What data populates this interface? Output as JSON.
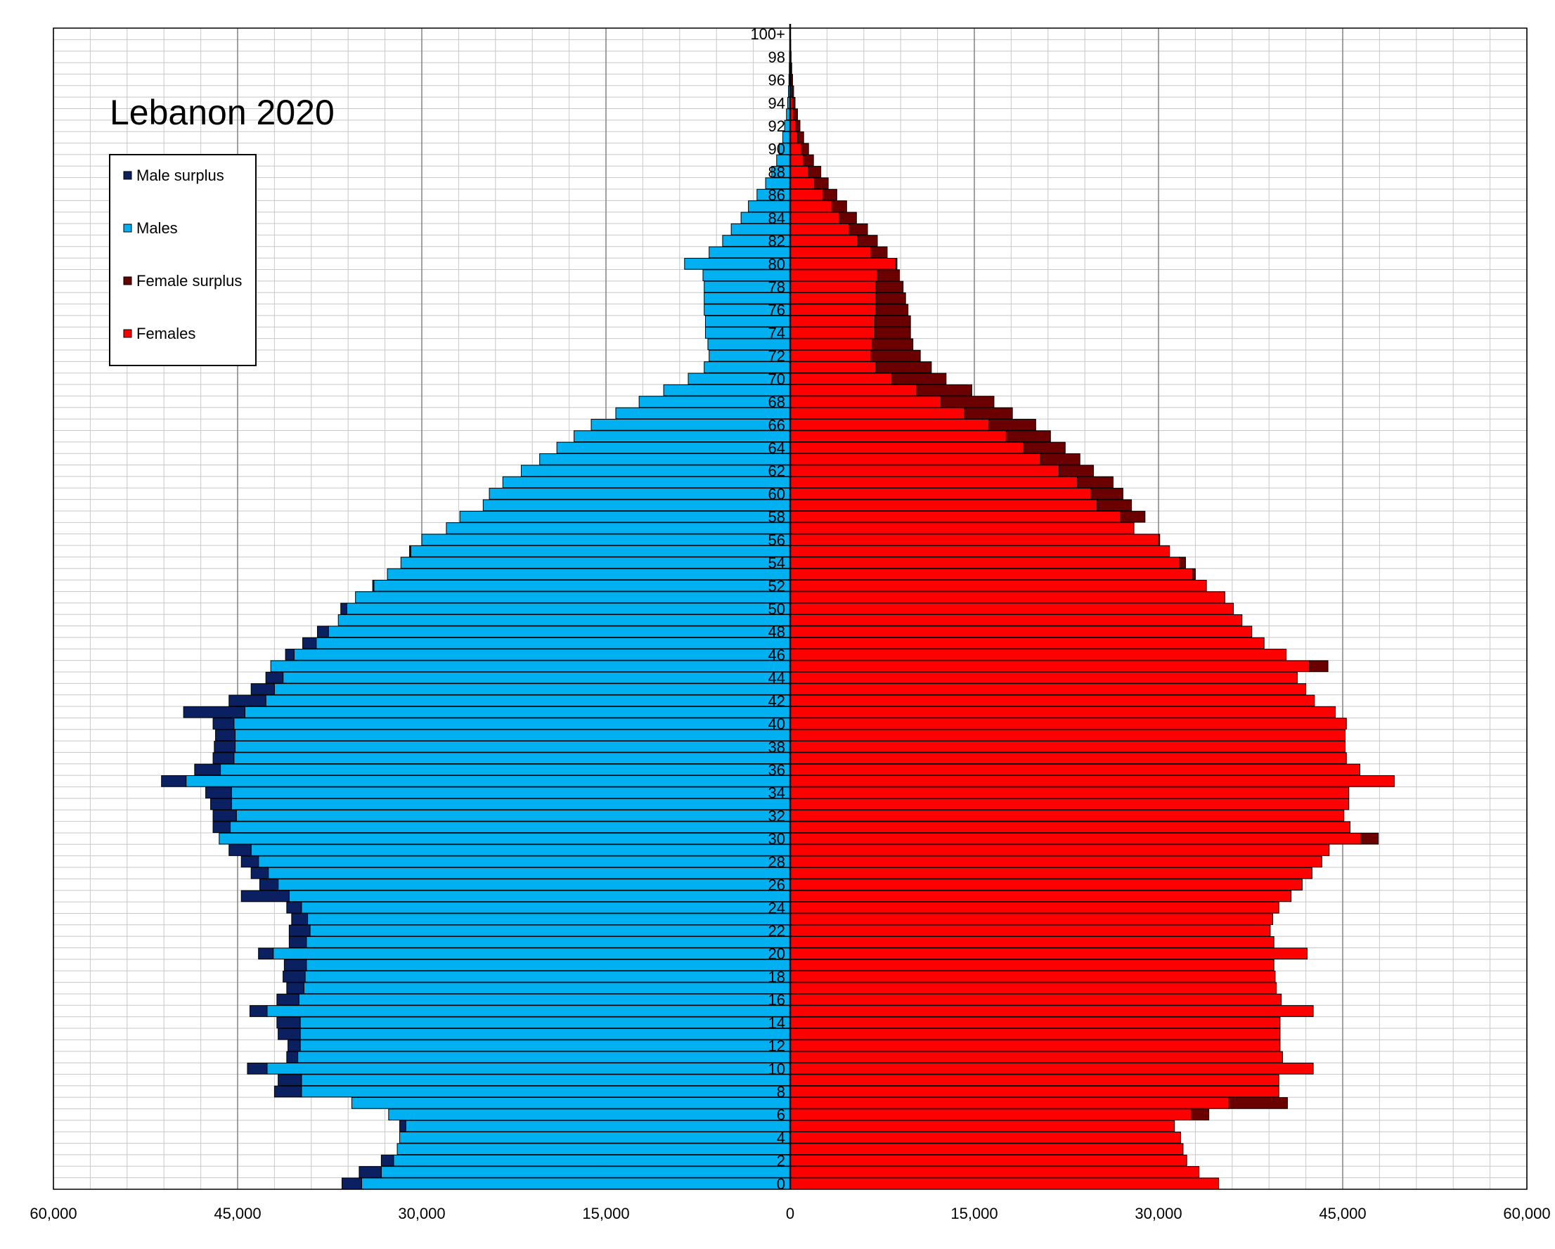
{
  "chart_data": {
    "type": "bar",
    "title": "Lebanon 2020",
    "orientation": "horizontal-population-pyramid",
    "xlim": [
      -60000,
      60000
    ],
    "x_ticks": [
      -60000,
      -45000,
      -30000,
      -15000,
      0,
      15000,
      30000,
      45000,
      60000
    ],
    "x_tick_labels": [
      "60,000",
      "45,000",
      "30,000",
      "15,000",
      "0",
      "15,000",
      "30,000",
      "45,000",
      "60,000"
    ],
    "y_tick_labels": [
      "0",
      "2",
      "4",
      "6",
      "8",
      "10",
      "12",
      "14",
      "16",
      "18",
      "20",
      "22",
      "24",
      "26",
      "28",
      "30",
      "32",
      "34",
      "36",
      "38",
      "40",
      "42",
      "44",
      "46",
      "48",
      "50",
      "52",
      "54",
      "56",
      "58",
      "60",
      "62",
      "64",
      "66",
      "68",
      "70",
      "72",
      "74",
      "76",
      "78",
      "80",
      "82",
      "84",
      "86",
      "88",
      "90",
      "92",
      "94",
      "96",
      "98",
      "100+"
    ],
    "legend": {
      "placement": "top-left",
      "entries": [
        {
          "label": "Male surplus",
          "color": "#0a2060"
        },
        {
          "label": "Males",
          "color": "#00b0f0"
        },
        {
          "label": "Female surplus",
          "color": "#6b0000"
        },
        {
          "label": "Females",
          "color": "#ff0000"
        }
      ]
    },
    "grid": true,
    "ages": [
      0,
      1,
      2,
      3,
      4,
      5,
      6,
      7,
      8,
      9,
      10,
      11,
      12,
      13,
      14,
      15,
      16,
      17,
      18,
      19,
      20,
      21,
      22,
      23,
      24,
      25,
      26,
      27,
      28,
      29,
      30,
      31,
      32,
      33,
      34,
      35,
      36,
      37,
      38,
      39,
      40,
      41,
      42,
      43,
      44,
      45,
      46,
      47,
      48,
      49,
      50,
      51,
      52,
      53,
      54,
      55,
      56,
      57,
      58,
      59,
      60,
      61,
      62,
      63,
      64,
      65,
      66,
      67,
      68,
      69,
      70,
      71,
      72,
      73,
      74,
      75,
      76,
      77,
      78,
      79,
      80,
      81,
      82,
      83,
      84,
      85,
      86,
      87,
      88,
      89,
      90,
      91,
      92,
      93,
      94,
      95,
      96,
      97,
      98,
      99,
      100
    ],
    "males": [
      36500,
      35100,
      33300,
      32000,
      31800,
      31800,
      32700,
      35700,
      42000,
      41700,
      44200,
      41000,
      40900,
      41700,
      41800,
      44000,
      41800,
      41000,
      41300,
      41200,
      43300,
      40800,
      40800,
      40600,
      41000,
      44700,
      43200,
      43900,
      44700,
      45700,
      46500,
      47000,
      47000,
      47200,
      47600,
      51200,
      48500,
      47000,
      46900,
      46800,
      47000,
      49400,
      45700,
      43900,
      42700,
      42300,
      41100,
      39700,
      38500,
      36800,
      36600,
      35400,
      34000,
      32800,
      31700,
      31000,
      30000,
      28000,
      26900,
      25000,
      24500,
      23400,
      21900,
      20400,
      19000,
      17600,
      16200,
      14200,
      12300,
      10300,
      8300,
      7000,
      6600,
      6700,
      6900,
      6900,
      7000,
      7000,
      7000,
      7100,
      8600,
      6600,
      5500,
      4800,
      4000,
      3400,
      2700,
      2000,
      1500,
      1100,
      900,
      600,
      450,
      300,
      200,
      140,
      100,
      70,
      50,
      30,
      20
    ],
    "females": [
      34900,
      33300,
      32300,
      32000,
      31800,
      31300,
      34100,
      40500,
      39800,
      39800,
      42600,
      40100,
      39900,
      39900,
      39900,
      42600,
      40000,
      39600,
      39500,
      39400,
      42100,
      39400,
      39100,
      39300,
      39800,
      40800,
      41700,
      42500,
      43300,
      43900,
      47900,
      45600,
      45100,
      45500,
      45500,
      49200,
      46400,
      45300,
      45200,
      45200,
      45300,
      44400,
      42700,
      42000,
      41300,
      43800,
      40400,
      38600,
      37600,
      36800,
      36100,
      35400,
      33900,
      33000,
      32200,
      30900,
      30100,
      28000,
      28900,
      27800,
      27100,
      26300,
      24700,
      23600,
      22400,
      21200,
      20000,
      18100,
      16600,
      14800,
      12700,
      11500,
      10600,
      10000,
      9800,
      9800,
      9600,
      9400,
      9200,
      8900,
      8700,
      7900,
      7100,
      6300,
      5400,
      4600,
      3800,
      3100,
      2500,
      1900,
      1500,
      1100,
      800,
      600,
      400,
      280,
      200,
      130,
      80,
      50,
      30
    ]
  }
}
